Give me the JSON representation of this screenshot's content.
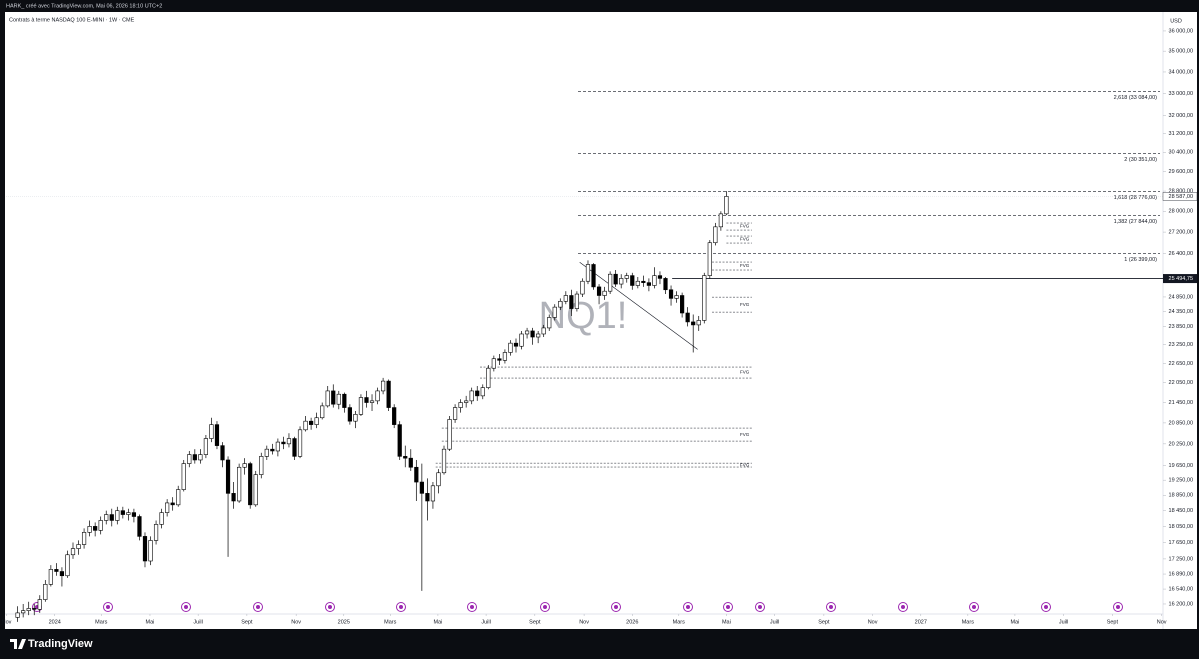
{
  "header": "HARK_ créé avec TradingView.com, Mai 06, 2026 18:10 UTC+2",
  "footer": {
    "brand": "TradingView"
  },
  "chart_data": {
    "type": "candlestick",
    "title": "Contrats à terme NASDAQ 100 E-MINI · 1W · CME",
    "watermark": "NQ1!",
    "currency": "USD",
    "log_scale": true,
    "up_color": "#ffffff",
    "down_color": "#000000",
    "edge_color": "#000000",
    "xlim": [
      -0.1,
      208.3
    ],
    "ylim": [
      16020,
      36860
    ],
    "xticks": [
      {
        "value": 0,
        "label": "Nov"
      },
      {
        "value": 8.7,
        "label": "2024"
      },
      {
        "value": 17.1,
        "label": "Mars"
      },
      {
        "value": 25.9,
        "label": "Mai"
      },
      {
        "value": 34.6,
        "label": "Juill"
      },
      {
        "value": 43.4,
        "label": "Sept"
      },
      {
        "value": 52.3,
        "label": "Nov"
      },
      {
        "value": 60.9,
        "label": "2025"
      },
      {
        "value": 69.3,
        "label": "Mars"
      },
      {
        "value": 77.9,
        "label": "Mai"
      },
      {
        "value": 86.6,
        "label": "Juill"
      },
      {
        "value": 95.4,
        "label": "Sept"
      },
      {
        "value": 104.3,
        "label": "Nov"
      },
      {
        "value": 113.0,
        "label": "2026"
      },
      {
        "value": 121.4,
        "label": "Mars"
      },
      {
        "value": 130.0,
        "label": "Mai"
      },
      {
        "value": 138.7,
        "label": "Juill"
      },
      {
        "value": 147.6,
        "label": "Sept"
      },
      {
        "value": 156.4,
        "label": "Nov"
      },
      {
        "value": 165.1,
        "label": "2027"
      },
      {
        "value": 173.6,
        "label": "Mars"
      },
      {
        "value": 182.1,
        "label": "Mai"
      },
      {
        "value": 190.9,
        "label": "Juill"
      },
      {
        "value": 199.7,
        "label": "Sept"
      },
      {
        "value": 208.6,
        "label": "Nov"
      }
    ],
    "yticks": [
      {
        "value": 36000,
        "label": "36 000,00"
      },
      {
        "value": 35000,
        "label": "35 000,00"
      },
      {
        "value": 34000,
        "label": "34 000,00"
      },
      {
        "value": 33000,
        "label": "33 000,00"
      },
      {
        "value": 32000,
        "label": "32 000,00"
      },
      {
        "value": 31200,
        "label": "31 200,00"
      },
      {
        "value": 30400,
        "label": "30 400,00"
      },
      {
        "value": 29600,
        "label": "29 600,00"
      },
      {
        "value": 28800,
        "label": "28 800,00"
      },
      {
        "value": 28000,
        "label": "28 000,00"
      },
      {
        "value": 27200,
        "label": "27 200,00"
      },
      {
        "value": 26400,
        "label": "26 400,00"
      },
      {
        "value": 24850,
        "label": "24 850,00"
      },
      {
        "value": 24350,
        "label": "24 350,00"
      },
      {
        "value": 23850,
        "label": "23 850,00"
      },
      {
        "value": 23250,
        "label": "23 250,00"
      },
      {
        "value": 22650,
        "label": "22 650,00"
      },
      {
        "value": 22050,
        "label": "22 050,00"
      },
      {
        "value": 21450,
        "label": "21 450,00"
      },
      {
        "value": 20850,
        "label": "20 850,00"
      },
      {
        "value": 20250,
        "label": "20 250,00"
      },
      {
        "value": 19650,
        "label": "19 650,00"
      },
      {
        "value": 19250,
        "label": "19 250,00"
      },
      {
        "value": 18850,
        "label": "18 850,00"
      },
      {
        "value": 18450,
        "label": "18 450,00"
      },
      {
        "value": 18050,
        "label": "18 050,00"
      },
      {
        "value": 17650,
        "label": "17 650,00"
      },
      {
        "value": 17250,
        "label": "17 250,00"
      },
      {
        "value": 16890,
        "label": "16 890,00"
      },
      {
        "value": 16540,
        "label": "16 540,00"
      },
      {
        "value": 16200,
        "label": "16 200,00"
      }
    ],
    "last_price": {
      "value": 28587,
      "label": "28 587,00"
    },
    "horizontal_line": {
      "start": 120.2,
      "value": 25494.75,
      "label": "25 494,75"
    },
    "trendline": {
      "from": [
        103.5,
        26080
      ],
      "to": [
        124.8,
        23100
      ]
    },
    "fib_levels": {
      "start": 103.2,
      "levels": [
        {
          "value": 33084,
          "label": "2,618 (33 084,00)"
        },
        {
          "value": 30351,
          "label": "2 (30 351,00)"
        },
        {
          "value": 28776,
          "label": "1,618 (28 776,00)"
        },
        {
          "value": 27844,
          "label": "1,382 (27 844,00)"
        },
        {
          "value": 26399,
          "label": "1 (26 399,00)"
        }
      ]
    },
    "fvg": [
      {
        "label": "FVG",
        "start": 130,
        "end": 134.6,
        "top": 27546,
        "bottom": 27277
      },
      {
        "label": "FVG",
        "start": 130,
        "end": 134.6,
        "top": 27051,
        "bottom": 26788
      },
      {
        "label": "FVG",
        "start": 127.4,
        "end": 134.6,
        "top": 26088,
        "bottom": 25800
      },
      {
        "label": "FVG",
        "start": 127.4,
        "end": 134.6,
        "top": 24843,
        "bottom": 24330
      },
      {
        "label": "FVG",
        "start": 85.5,
        "end": 134.6,
        "top": 22537,
        "bottom": 22194
      },
      {
        "label": "FVG",
        "start": 78.6,
        "end": 134.6,
        "top": 20700,
        "bottom": 20328
      },
      {
        "label": "FVG",
        "start": 77.5,
        "end": 134.6,
        "top": 19713,
        "bottom": 19606
      }
    ],
    "candles": [
      [
        2,
        15900,
        16150,
        15800,
        16000
      ],
      [
        3,
        16000,
        16200,
        15900,
        16050
      ],
      [
        4,
        16050,
        16250,
        15950,
        16100
      ],
      [
        5,
        16100,
        16200,
        15950,
        16080
      ],
      [
        6,
        16080,
        16400,
        16000,
        16300
      ],
      [
        7,
        16300,
        16750,
        16250,
        16650
      ],
      [
        8,
        16650,
        17100,
        16600,
        17000
      ],
      [
        9,
        17000,
        17150,
        16850,
        16950
      ],
      [
        10,
        16950,
        17050,
        16600,
        16850
      ],
      [
        11,
        16850,
        17450,
        16800,
        17350
      ],
      [
        12,
        17350,
        17650,
        17250,
        17500
      ],
      [
        13,
        17500,
        17700,
        17350,
        17600
      ],
      [
        14,
        17600,
        18000,
        17500,
        17900
      ],
      [
        15,
        17900,
        18200,
        17800,
        18050
      ],
      [
        16,
        18050,
        18150,
        17800,
        17950
      ],
      [
        17,
        17950,
        18300,
        17850,
        18200
      ],
      [
        18,
        18200,
        18450,
        18100,
        18350
      ],
      [
        19,
        18350,
        18500,
        18050,
        18200
      ],
      [
        20,
        18200,
        18550,
        18100,
        18450
      ],
      [
        21,
        18450,
        18550,
        18250,
        18350
      ],
      [
        22,
        18350,
        18500,
        18200,
        18400
      ],
      [
        23,
        18400,
        18500,
        18150,
        18300
      ],
      [
        24,
        18300,
        18350,
        17700,
        17800
      ],
      [
        25,
        17800,
        17900,
        17050,
        17200
      ],
      [
        26,
        17200,
        17800,
        17100,
        17700
      ],
      [
        27,
        17700,
        18200,
        17600,
        18100
      ],
      [
        28,
        18100,
        18500,
        18000,
        18400
      ],
      [
        29,
        18400,
        18750,
        18300,
        18650
      ],
      [
        30,
        18650,
        18800,
        18450,
        18600
      ],
      [
        31,
        18600,
        19100,
        18550,
        19000
      ],
      [
        32,
        19000,
        19800,
        18950,
        19700
      ],
      [
        33,
        19700,
        20050,
        19600,
        19950
      ],
      [
        34,
        19950,
        20100,
        19700,
        19800
      ],
      [
        35,
        19800,
        20100,
        19700,
        19950
      ],
      [
        36,
        19950,
        20500,
        19850,
        20400
      ],
      [
        37,
        20400,
        21000,
        20300,
        20800
      ],
      [
        38,
        20800,
        20900,
        20100,
        20200
      ],
      [
        39,
        20200,
        20300,
        19600,
        19800
      ],
      [
        40,
        19800,
        19900,
        17300,
        18900
      ],
      [
        41,
        18900,
        19200,
        18500,
        18700
      ],
      [
        42,
        18700,
        19700,
        18650,
        19600
      ],
      [
        43,
        19600,
        19850,
        19400,
        19700
      ],
      [
        44,
        19700,
        19750,
        18500,
        18600
      ],
      [
        45,
        18600,
        19500,
        18550,
        19400
      ],
      [
        46,
        19400,
        20000,
        19300,
        19900
      ],
      [
        47,
        19900,
        20200,
        19800,
        20100
      ],
      [
        48,
        20100,
        20250,
        19950,
        20050
      ],
      [
        49,
        20050,
        20400,
        19900,
        20300
      ],
      [
        50,
        20300,
        20450,
        20100,
        20250
      ],
      [
        51,
        20250,
        20550,
        20150,
        20400
      ],
      [
        52,
        20400,
        20450,
        19800,
        19900
      ],
      [
        53,
        19900,
        20750,
        19850,
        20650
      ],
      [
        54,
        20650,
        21050,
        20600,
        20900
      ],
      [
        55,
        20900,
        21000,
        20650,
        20800
      ],
      [
        56,
        20800,
        21150,
        20700,
        21000
      ],
      [
        57,
        21000,
        21450,
        20950,
        21350
      ],
      [
        58,
        21350,
        21950,
        21300,
        21800
      ],
      [
        59,
        21800,
        22000,
        21300,
        21400
      ],
      [
        60,
        21400,
        21800,
        21250,
        21700
      ],
      [
        61,
        21700,
        21750,
        21150,
        21300
      ],
      [
        62,
        21300,
        21400,
        20800,
        20900
      ],
      [
        63,
        20900,
        21200,
        20700,
        21100
      ],
      [
        64,
        21100,
        21700,
        21050,
        21600
      ],
      [
        65,
        21600,
        21800,
        21300,
        21450
      ],
      [
        66,
        21450,
        21700,
        21200,
        21500
      ],
      [
        67,
        21500,
        21900,
        21400,
        21800
      ],
      [
        68,
        21800,
        22200,
        21700,
        22100
      ],
      [
        69,
        22100,
        22150,
        21200,
        21300
      ],
      [
        70,
        21300,
        21400,
        20700,
        20800
      ],
      [
        71,
        20800,
        20900,
        19800,
        19900
      ],
      [
        72,
        19900,
        20200,
        19600,
        19850
      ],
      [
        73,
        19850,
        20100,
        19500,
        19600
      ],
      [
        74,
        19600,
        19800,
        18700,
        19200
      ],
      [
        75,
        19200,
        19700,
        16500,
        18900
      ],
      [
        76,
        18900,
        19300,
        18200,
        18700
      ],
      [
        77,
        18700,
        19200,
        18500,
        19100
      ],
      [
        78,
        19100,
        19550,
        18900,
        19450
      ],
      [
        79,
        19450,
        20200,
        19400,
        20100
      ],
      [
        80,
        20100,
        21050,
        20050,
        20950
      ],
      [
        81,
        20950,
        21400,
        20850,
        21300
      ],
      [
        82,
        21300,
        21550,
        21150,
        21450
      ],
      [
        83,
        21450,
        21650,
        21300,
        21500
      ],
      [
        84,
        21500,
        21900,
        21400,
        21800
      ],
      [
        85,
        21800,
        21950,
        21500,
        21650
      ],
      [
        86,
        21650,
        22000,
        21550,
        21900
      ],
      [
        87,
        21900,
        22600,
        21850,
        22500
      ],
      [
        88,
        22500,
        22900,
        22400,
        22800
      ],
      [
        89,
        22800,
        22950,
        22600,
        22750
      ],
      [
        90,
        22750,
        23100,
        22650,
        23000
      ],
      [
        91,
        23000,
        23400,
        22900,
        23300
      ],
      [
        92,
        23300,
        23450,
        23000,
        23200
      ],
      [
        93,
        23200,
        23700,
        23100,
        23600
      ],
      [
        94,
        23600,
        23800,
        23450,
        23700
      ],
      [
        95,
        23700,
        23800,
        23250,
        23500
      ],
      [
        96,
        23500,
        23700,
        23300,
        23600
      ],
      [
        97,
        23600,
        23900,
        23500,
        23800
      ],
      [
        98,
        23800,
        24250,
        23700,
        24150
      ],
      [
        99,
        24150,
        24600,
        24050,
        24500
      ],
      [
        100,
        24500,
        24800,
        24400,
        24700
      ],
      [
        101,
        24700,
        25050,
        24600,
        24900
      ],
      [
        102,
        24900,
        25100,
        24200,
        24450
      ],
      [
        103,
        24450,
        25050,
        24350,
        24950
      ],
      [
        104,
        24950,
        25500,
        24850,
        25400
      ],
      [
        105,
        25400,
        26150,
        25300,
        26000
      ],
      [
        106,
        26000,
        26050,
        25100,
        25200
      ],
      [
        107,
        25200,
        25300,
        24600,
        24900
      ],
      [
        108,
        24900,
        25200,
        24750,
        25050
      ],
      [
        109,
        25050,
        25750,
        24950,
        25650
      ],
      [
        110,
        25650,
        25800,
        25200,
        25300
      ],
      [
        111,
        25300,
        25650,
        25150,
        25500
      ],
      [
        112,
        25500,
        25700,
        25350,
        25600
      ],
      [
        113,
        25600,
        25700,
        25100,
        25250
      ],
      [
        114,
        25250,
        25550,
        25150,
        25400
      ],
      [
        115,
        25400,
        25600,
        25200,
        25350
      ],
      [
        116,
        25350,
        25500,
        25050,
        25250
      ],
      [
        117,
        25250,
        25900,
        25150,
        25600
      ],
      [
        118,
        25600,
        25750,
        25300,
        25500
      ],
      [
        119,
        25500,
        25550,
        24950,
        25100
      ],
      [
        120,
        25100,
        25250,
        24550,
        24800
      ],
      [
        121,
        24800,
        25050,
        24650,
        24900
      ],
      [
        122,
        24900,
        25000,
        24150,
        24300
      ],
      [
        123,
        24300,
        24500,
        23850,
        24000
      ],
      [
        124,
        24000,
        24250,
        23000,
        23900
      ],
      [
        125,
        23900,
        24200,
        23700,
        24050
      ],
      [
        126,
        24050,
        25700,
        23950,
        25600
      ],
      [
        127,
        25600,
        26900,
        25500,
        26800
      ],
      [
        128,
        26800,
        27550,
        26700,
        27400
      ],
      [
        129,
        27400,
        28000,
        27250,
        27900
      ],
      [
        130,
        27900,
        28800,
        27850,
        28587
      ]
    ]
  }
}
